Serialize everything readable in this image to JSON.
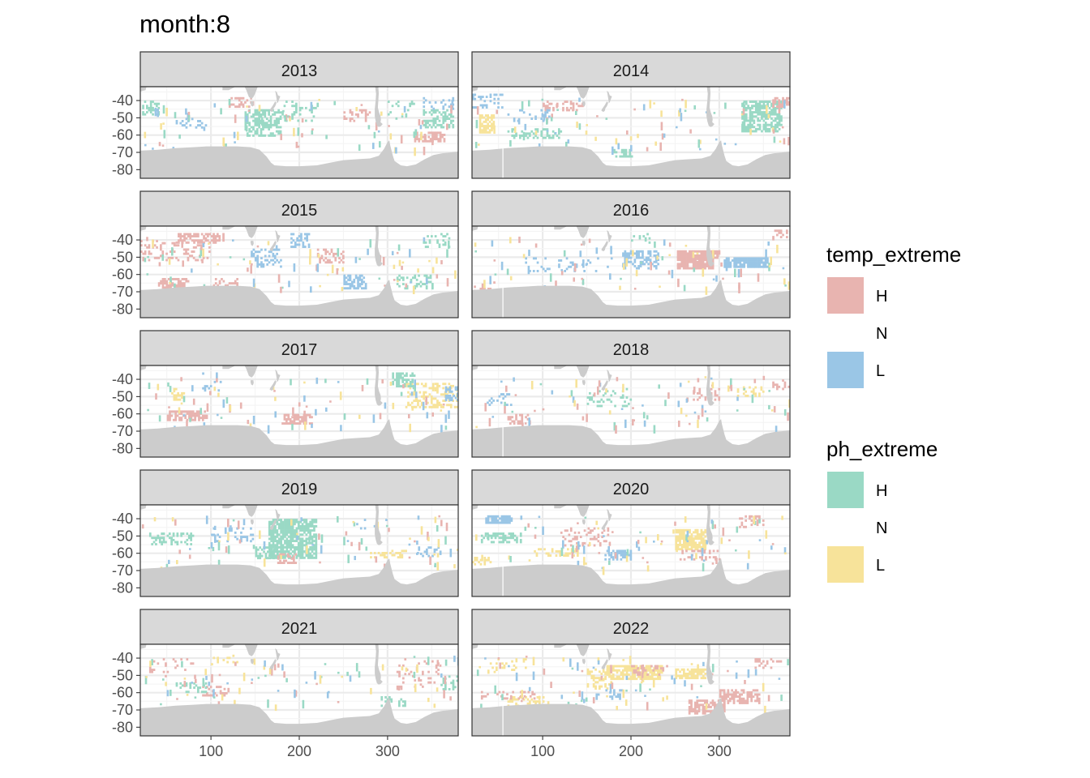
{
  "title": "month:8",
  "colors": {
    "temp_H": "#e8b4b0",
    "temp_L": "#9ac6e6",
    "ph_H": "#9ad9c5",
    "ph_L": "#f7e39a",
    "land": "#cccccc",
    "strip_bg": "#d9d9d9",
    "grid": "#ebebeb",
    "panel_border": "#333333",
    "overlap": "#8c7f72"
  },
  "chart_data": {
    "type": "heatmap",
    "facet_by": "year",
    "facets": [
      "2013",
      "2014",
      "2015",
      "2016",
      "2017",
      "2018",
      "2019",
      "2020",
      "2021",
      "2022"
    ],
    "x_ticks": [
      100,
      200,
      300
    ],
    "y_ticks": [
      -40,
      -50,
      -60,
      -70,
      -80
    ],
    "xlim": [
      20,
      380
    ],
    "ylim": [
      -85,
      -32
    ],
    "x_tick_labels": [
      "100",
      "200",
      "300"
    ],
    "y_tick_labels": [
      "-40",
      "-50",
      "-60",
      "-70",
      "-80"
    ],
    "legends": [
      {
        "title": "temp_extreme",
        "items": [
          {
            "label": "H",
            "color": "#e8b4b0"
          },
          {
            "label": "N",
            "color": null
          },
          {
            "label": "L",
            "color": "#9ac6e6"
          }
        ]
      },
      {
        "title": "ph_extreme",
        "items": [
          {
            "label": "H",
            "color": "#9ad9c5"
          },
          {
            "label": "N",
            "color": null
          },
          {
            "label": "L",
            "color": "#f7e39a"
          }
        ]
      }
    ],
    "patches": {
      "2013": [
        {
          "var": "ph",
          "cat": "H",
          "x": [
            138,
            178
          ],
          "y": [
            -60,
            -45
          ],
          "d": 0.55
        },
        {
          "var": "ph",
          "cat": "H",
          "x": [
            180,
            220
          ],
          "y": [
            -52,
            -40
          ],
          "d": 0.2
        },
        {
          "var": "ph",
          "cat": "H",
          "x": [
            340,
            375
          ],
          "y": [
            -55,
            -45
          ],
          "d": 0.5
        },
        {
          "var": "ph",
          "cat": "H",
          "x": [
            22,
            40
          ],
          "y": [
            -48,
            -40
          ],
          "d": 0.4
        },
        {
          "var": "ph",
          "cat": "H",
          "x": [
            300,
            330
          ],
          "y": [
            -50,
            -40
          ],
          "d": 0.15
        },
        {
          "var": "temp",
          "cat": "H",
          "x": [
            250,
            280
          ],
          "y": [
            -52,
            -45
          ],
          "d": 0.3
        },
        {
          "var": "temp",
          "cat": "H",
          "x": [
            330,
            365
          ],
          "y": [
            -64,
            -58
          ],
          "d": 0.55
        },
        {
          "var": "temp",
          "cat": "H",
          "x": [
            120,
            150
          ],
          "y": [
            -43,
            -38
          ],
          "d": 0.3
        },
        {
          "var": "temp",
          "cat": "L",
          "x": [
            60,
            95
          ],
          "y": [
            -55,
            -50
          ],
          "d": 0.25
        },
        {
          "var": "temp",
          "cat": "L",
          "x": [
            340,
            375
          ],
          "y": [
            -45,
            -38
          ],
          "d": 0.2
        }
      ],
      "2014": [
        {
          "var": "ph",
          "cat": "L",
          "x": [
            28,
            45
          ],
          "y": [
            -58,
            -48
          ],
          "d": 0.85
        },
        {
          "var": "ph",
          "cat": "H",
          "x": [
            325,
            370
          ],
          "y": [
            -58,
            -40
          ],
          "d": 0.65
        },
        {
          "var": "ph",
          "cat": "H",
          "x": [
            60,
            120
          ],
          "y": [
            -62,
            -56
          ],
          "d": 0.25
        },
        {
          "var": "ph",
          "cat": "H",
          "x": [
            180,
            200
          ],
          "y": [
            -72,
            -68
          ],
          "d": 0.5
        },
        {
          "var": "temp",
          "cat": "H",
          "x": [
            100,
            145
          ],
          "y": [
            -46,
            -40
          ],
          "d": 0.45
        },
        {
          "var": "temp",
          "cat": "H",
          "x": [
            360,
            380
          ],
          "y": [
            -44,
            -38
          ],
          "d": 0.5
        },
        {
          "var": "temp",
          "cat": "L",
          "x": [
            20,
            55
          ],
          "y": [
            -44,
            -36
          ],
          "d": 0.25
        },
        {
          "var": "temp",
          "cat": "L",
          "x": [
            60,
            110
          ],
          "y": [
            -52,
            -45
          ],
          "d": 0.15
        }
      ],
      "2015": [
        {
          "var": "temp",
          "cat": "H",
          "x": [
            60,
            115
          ],
          "y": [
            -42,
            -36
          ],
          "d": 0.6
        },
        {
          "var": "temp",
          "cat": "H",
          "x": [
            20,
            100
          ],
          "y": [
            -52,
            -40
          ],
          "d": 0.2
        },
        {
          "var": "temp",
          "cat": "H",
          "x": [
            40,
            75
          ],
          "y": [
            -68,
            -62
          ],
          "d": 0.6
        },
        {
          "var": "temp",
          "cat": "H",
          "x": [
            100,
            130
          ],
          "y": [
            -67,
            -62
          ],
          "d": 0.3
        },
        {
          "var": "temp",
          "cat": "H",
          "x": [
            220,
            250
          ],
          "y": [
            -53,
            -45
          ],
          "d": 0.3
        },
        {
          "var": "temp",
          "cat": "L",
          "x": [
            145,
            180
          ],
          "y": [
            -55,
            -45
          ],
          "d": 0.35
        },
        {
          "var": "temp",
          "cat": "L",
          "x": [
            190,
            210
          ],
          "y": [
            -44,
            -36
          ],
          "d": 0.5
        },
        {
          "var": "temp",
          "cat": "L",
          "x": [
            250,
            275
          ],
          "y": [
            -68,
            -60
          ],
          "d": 0.6
        },
        {
          "var": "ph",
          "cat": "H",
          "x": [
            310,
            350
          ],
          "y": [
            -68,
            -60
          ],
          "d": 0.3
        },
        {
          "var": "ph",
          "cat": "H",
          "x": [
            340,
            370
          ],
          "y": [
            -44,
            -36
          ],
          "d": 0.3
        }
      ],
      "2016": [
        {
          "var": "temp",
          "cat": "H",
          "x": [
            252,
            292
          ],
          "y": [
            -56,
            -46
          ],
          "d": 0.9
        },
        {
          "var": "temp",
          "cat": "H",
          "x": [
            290,
            300
          ],
          "y": [
            -50,
            -46
          ],
          "d": 0.7
        },
        {
          "var": "temp",
          "cat": "L",
          "x": [
            190,
            230
          ],
          "y": [
            -56,
            -46
          ],
          "d": 0.5
        },
        {
          "var": "temp",
          "cat": "L",
          "x": [
            305,
            355
          ],
          "y": [
            -56,
            -50
          ],
          "d": 0.85
        },
        {
          "var": "temp",
          "cat": "L",
          "x": [
            80,
            180
          ],
          "y": [
            -58,
            -50
          ],
          "d": 0.12
        },
        {
          "var": "temp",
          "cat": "H",
          "x": [
            22,
            45
          ],
          "y": [
            -70,
            -64
          ],
          "d": 0.3
        },
        {
          "var": "temp",
          "cat": "H",
          "x": [
            360,
            380
          ],
          "y": [
            -40,
            -34
          ],
          "d": 0.4
        },
        {
          "var": "ph",
          "cat": "H",
          "x": [
            200,
            230
          ],
          "y": [
            -42,
            -36
          ],
          "d": 0.2
        }
      ],
      "2017": [
        {
          "var": "temp",
          "cat": "H",
          "x": [
            50,
            95
          ],
          "y": [
            -64,
            -58
          ],
          "d": 0.7
        },
        {
          "var": "temp",
          "cat": "H",
          "x": [
            180,
            215
          ],
          "y": [
            -66,
            -60
          ],
          "d": 0.7
        },
        {
          "var": "ph",
          "cat": "L",
          "x": [
            55,
            70
          ],
          "y": [
            -52,
            -45
          ],
          "d": 0.5
        },
        {
          "var": "ph",
          "cat": "L",
          "x": [
            320,
            380
          ],
          "y": [
            -56,
            -42
          ],
          "d": 0.35
        },
        {
          "var": "ph",
          "cat": "H",
          "x": [
            305,
            330
          ],
          "y": [
            -44,
            -36
          ],
          "d": 0.6
        },
        {
          "var": "temp",
          "cat": "L",
          "x": [
            365,
            380
          ],
          "y": [
            -52,
            -44
          ],
          "d": 0.4
        },
        {
          "var": "temp",
          "cat": "L",
          "x": [
            90,
            110
          ],
          "y": [
            -46,
            -36
          ],
          "d": 0.2
        }
      ],
      "2018": [
        {
          "var": "temp",
          "cat": "H",
          "x": [
            60,
            85
          ],
          "y": [
            -66,
            -60
          ],
          "d": 0.6
        },
        {
          "var": "temp",
          "cat": "H",
          "x": [
            270,
            300
          ],
          "y": [
            -52,
            -45
          ],
          "d": 0.35
        },
        {
          "var": "temp",
          "cat": "L",
          "x": [
            30,
            70
          ],
          "y": [
            -55,
            -48
          ],
          "d": 0.2
        },
        {
          "var": "ph",
          "cat": "H",
          "x": [
            150,
            200
          ],
          "y": [
            -55,
            -45
          ],
          "d": 0.2
        },
        {
          "var": "ph",
          "cat": "L",
          "x": [
            320,
            350
          ],
          "y": [
            -50,
            -44
          ],
          "d": 0.3
        },
        {
          "var": "temp",
          "cat": "H",
          "x": [
            360,
            380
          ],
          "y": [
            -46,
            -40
          ],
          "d": 0.4
        }
      ],
      "2019": [
        {
          "var": "ph",
          "cat": "H",
          "x": [
            165,
            220
          ],
          "y": [
            -62,
            -40
          ],
          "d": 0.75
        },
        {
          "var": "ph",
          "cat": "H",
          "x": [
            150,
            175
          ],
          "y": [
            -63,
            -56
          ],
          "d": 0.5
        },
        {
          "var": "ph",
          "cat": "H",
          "x": [
            30,
            80
          ],
          "y": [
            -55,
            -48
          ],
          "d": 0.35
        },
        {
          "var": "ph",
          "cat": "L",
          "x": [
            280,
            320
          ],
          "y": [
            -62,
            -58
          ],
          "d": 0.4
        },
        {
          "var": "temp",
          "cat": "H",
          "x": [
            175,
            195
          ],
          "y": [
            -66,
            -60
          ],
          "d": 0.5
        },
        {
          "var": "temp",
          "cat": "L",
          "x": [
            100,
            150
          ],
          "y": [
            -53,
            -45
          ],
          "d": 0.2
        },
        {
          "var": "temp",
          "cat": "L",
          "x": [
            260,
            300
          ],
          "y": [
            -46,
            -40
          ],
          "d": 0.15
        },
        {
          "var": "temp",
          "cat": "L",
          "x": [
            330,
            360
          ],
          "y": [
            -62,
            -56
          ],
          "d": 0.25
        }
      ],
      "2020": [
        {
          "var": "temp",
          "cat": "L",
          "x": [
            35,
            65
          ],
          "y": [
            -42,
            -38
          ],
          "d": 0.85
        },
        {
          "var": "temp",
          "cat": "L",
          "x": [
            170,
            200
          ],
          "y": [
            -63,
            -58
          ],
          "d": 0.55
        },
        {
          "var": "ph",
          "cat": "H",
          "x": [
            30,
            75
          ],
          "y": [
            -53,
            -48
          ],
          "d": 0.5
        },
        {
          "var": "ph",
          "cat": "L",
          "x": [
            250,
            285
          ],
          "y": [
            -58,
            -46
          ],
          "d": 0.8
        },
        {
          "var": "ph",
          "cat": "L",
          "x": [
            90,
            140
          ],
          "y": [
            -61,
            -57
          ],
          "d": 0.4
        },
        {
          "var": "ph",
          "cat": "L",
          "x": [
            20,
            45
          ],
          "y": [
            -66,
            -62
          ],
          "d": 0.3
        },
        {
          "var": "temp",
          "cat": "H",
          "x": [
            120,
            175
          ],
          "y": [
            -55,
            -45
          ],
          "d": 0.2
        },
        {
          "var": "temp",
          "cat": "H",
          "x": [
            255,
            300
          ],
          "y": [
            -63,
            -58
          ],
          "d": 0.35
        },
        {
          "var": "temp",
          "cat": "H",
          "x": [
            320,
            350
          ],
          "y": [
            -45,
            -38
          ],
          "d": 0.3
        }
      ],
      "2021": [
        {
          "var": "temp",
          "cat": "H",
          "x": [
            310,
            360
          ],
          "y": [
            -58,
            -40
          ],
          "d": 0.12
        },
        {
          "var": "temp",
          "cat": "H",
          "x": [
            30,
            80
          ],
          "y": [
            -50,
            -40
          ],
          "d": 0.1
        },
        {
          "var": "temp",
          "cat": "H",
          "x": [
            90,
            120
          ],
          "y": [
            -62,
            -56
          ],
          "d": 0.3
        },
        {
          "var": "ph",
          "cat": "H",
          "x": [
            60,
            95
          ],
          "y": [
            -60,
            -54
          ],
          "d": 0.3
        },
        {
          "var": "ph",
          "cat": "H",
          "x": [
            290,
            320
          ],
          "y": [
            -68,
            -62
          ],
          "d": 0.3
        },
        {
          "var": "ph",
          "cat": "H",
          "x": [
            360,
            380
          ],
          "y": [
            -58,
            -50
          ],
          "d": 0.4
        },
        {
          "var": "ph",
          "cat": "L",
          "x": [
            100,
            130
          ],
          "y": [
            -43,
            -38
          ],
          "d": 0.2
        }
      ],
      "2022": [
        {
          "var": "ph",
          "cat": "L",
          "x": [
            170,
            235
          ],
          "y": [
            -52,
            -44
          ],
          "d": 0.75
        },
        {
          "var": "ph",
          "cat": "L",
          "x": [
            150,
            180
          ],
          "y": [
            -58,
            -46
          ],
          "d": 0.35
        },
        {
          "var": "ph",
          "cat": "L",
          "x": [
            250,
            285
          ],
          "y": [
            -52,
            -46
          ],
          "d": 0.7
        },
        {
          "var": "ph",
          "cat": "L",
          "x": [
            60,
            100
          ],
          "y": [
            -68,
            -62
          ],
          "d": 0.3
        },
        {
          "var": "ph",
          "cat": "L",
          "x": [
            40,
            80
          ],
          "y": [
            -48,
            -40
          ],
          "d": 0.15
        },
        {
          "var": "temp",
          "cat": "H",
          "x": [
            265,
            305
          ],
          "y": [
            -72,
            -64
          ],
          "d": 0.75
        },
        {
          "var": "temp",
          "cat": "H",
          "x": [
            300,
            345
          ],
          "y": [
            -66,
            -58
          ],
          "d": 0.6
        },
        {
          "var": "temp",
          "cat": "H",
          "x": [
            30,
            90
          ],
          "y": [
            -63,
            -59
          ],
          "d": 0.35
        },
        {
          "var": "temp",
          "cat": "H",
          "x": [
            200,
            240
          ],
          "y": [
            -50,
            -44
          ],
          "d": 0.25
        },
        {
          "var": "temp",
          "cat": "L",
          "x": [
            160,
            190
          ],
          "y": [
            -64,
            -58
          ],
          "d": 0.3
        },
        {
          "var": "temp",
          "cat": "H",
          "x": [
            340,
            370
          ],
          "y": [
            -46,
            -40
          ],
          "d": 0.25
        }
      ]
    }
  }
}
